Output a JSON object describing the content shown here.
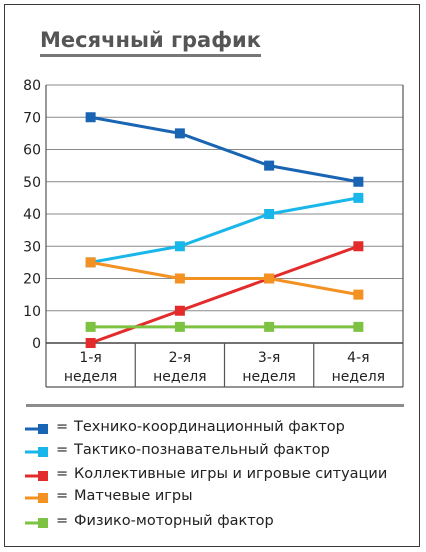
{
  "chart_data": {
    "type": "line",
    "title": "Месячный график",
    "categories": [
      [
        "1-я",
        "неделя"
      ],
      [
        "2-я",
        "неделя"
      ],
      [
        "3-я",
        "неделя"
      ],
      [
        "4-я",
        "неделя"
      ]
    ],
    "y_ticks": [
      "0",
      "10",
      "20",
      "30",
      "40",
      "50",
      "60",
      "70",
      "80"
    ],
    "ylim": [
      0,
      80
    ],
    "grid": true,
    "legend_placement": "bottom",
    "series": [
      {
        "name": "Технико-координационный фактор",
        "color": "#1a64b4",
        "values": [
          70,
          65,
          55,
          50
        ]
      },
      {
        "name": "Тактико-познавательный фактор",
        "color": "#19b6ea",
        "values": [
          25,
          30,
          40,
          45
        ]
      },
      {
        "name": "Коллективные игры и игровые ситуации",
        "color": "#e42b2b",
        "values": [
          0,
          10,
          20,
          30
        ]
      },
      {
        "name": "Матчевые игры",
        "color": "#f39222",
        "values": [
          25,
          20,
          20,
          15
        ]
      },
      {
        "name": "Физико-моторный фактор",
        "color": "#7dc242",
        "values": [
          5,
          5,
          5,
          5
        ]
      }
    ],
    "legend_separator": "="
  }
}
